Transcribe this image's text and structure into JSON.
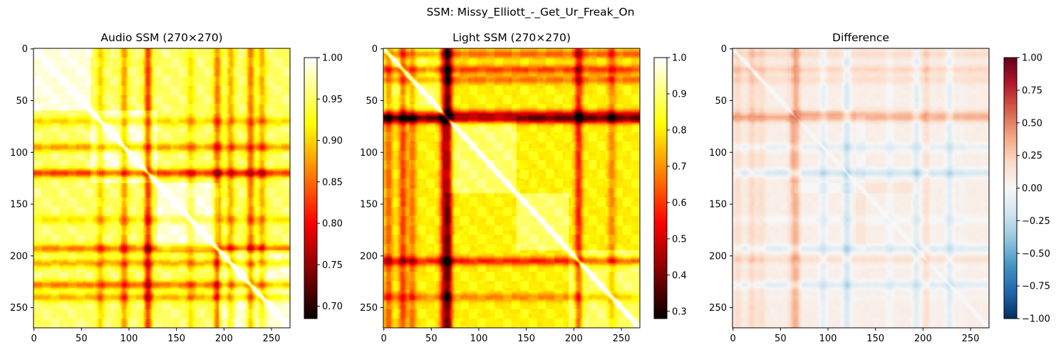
{
  "suptitle": "SSM: Missy_Elliott_-_Get_Ur_Freak_On",
  "colors": {
    "axis": "#000000",
    "background": "#ffffff"
  },
  "chart_data": [
    {
      "type": "heatmap",
      "title": "Audio SSM (270×270)",
      "size": 270,
      "colormap": "hot",
      "vmin": 0.685,
      "vmax": 1.0,
      "x_ticks": [
        0,
        50,
        100,
        150,
        200,
        250
      ],
      "y_ticks": [
        0,
        50,
        100,
        150,
        200,
        250
      ],
      "colorbar_ticks": [
        1.0,
        0.95,
        0.9,
        0.85,
        0.8,
        0.75,
        0.7
      ],
      "colorbar_labels": [
        "1.00",
        "0.95",
        "0.90",
        "0.85",
        "0.80",
        "0.75",
        "0.70"
      ],
      "features": {
        "sections": [
          [
            0,
            60
          ],
          [
            60,
            130
          ],
          [
            130,
            195
          ],
          [
            195,
            270
          ]
        ],
        "dark_lines": [
          [
            95,
            0.45
          ],
          [
            120,
            0.75
          ],
          [
            193,
            0.55
          ],
          [
            207,
            0.4
          ],
          [
            228,
            0.55
          ],
          [
            240,
            0.4
          ],
          [
            70,
            0.3
          ],
          [
            165,
            0.25
          ]
        ],
        "base_level": 0.9
      }
    },
    {
      "type": "heatmap",
      "title": "Light SSM (270×270)",
      "size": 270,
      "colormap": "hot",
      "vmin": 0.28,
      "vmax": 1.0,
      "x_ticks": [
        0,
        50,
        100,
        150,
        200,
        250
      ],
      "y_ticks": [
        0,
        50,
        100,
        150,
        200,
        250
      ],
      "colorbar_ticks": [
        1.0,
        0.9,
        0.8,
        0.7,
        0.6,
        0.5,
        0.4,
        0.3
      ],
      "colorbar_labels": [
        "1.0",
        "0.9",
        "0.8",
        "0.7",
        "0.6",
        "0.5",
        "0.4",
        "0.3"
      ],
      "features": {
        "sections": [
          [
            0,
            65
          ],
          [
            65,
            140
          ],
          [
            140,
            195
          ],
          [
            195,
            270
          ]
        ],
        "dark_lines": [
          [
            68,
            0.9
          ],
          [
            63,
            0.6
          ],
          [
            20,
            0.5
          ],
          [
            5,
            0.4
          ],
          [
            205,
            0.6
          ],
          [
            30,
            0.35
          ],
          [
            240,
            0.3
          ]
        ],
        "base_level": 0.78
      }
    },
    {
      "type": "heatmap",
      "title": "Difference",
      "size": 270,
      "colormap": "RdBu_r",
      "vmin": -1.0,
      "vmax": 1.0,
      "x_ticks": [
        0,
        50,
        100,
        150,
        200,
        250
      ],
      "y_ticks": [
        0,
        50,
        100,
        150,
        200,
        250
      ],
      "colorbar_ticks": [
        1.0,
        0.75,
        0.5,
        0.25,
        0.0,
        -0.25,
        -0.5,
        -0.75,
        -1.0
      ],
      "colorbar_labels": [
        "1.00",
        "0.75",
        "0.50",
        "0.25",
        "0.00",
        "−0.25",
        "−0.50",
        "−0.75",
        "−1.00"
      ],
      "features": {
        "derived_from": "audio_minus_light"
      }
    }
  ]
}
